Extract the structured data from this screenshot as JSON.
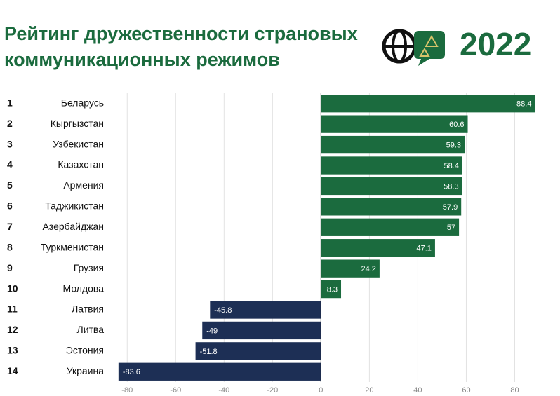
{
  "chart_data": {
    "type": "barh",
    "title_lines": [
      "Рейтинг дружественности страновых",
      "коммуникационных режимов"
    ],
    "year": "2022",
    "ranks": [
      1,
      2,
      3,
      4,
      5,
      6,
      7,
      8,
      9,
      10,
      11,
      12,
      13,
      14
    ],
    "categories": [
      "Беларусь",
      "Кыргызстан",
      "Узбекистан",
      "Казахстан",
      "Армения",
      "Таджикистан",
      "Азербайджан",
      "Туркменистан",
      "Грузия",
      "Молдова",
      "Латвия",
      "Литва",
      "Эстония",
      "Украина"
    ],
    "values": [
      88.4,
      60.6,
      59.3,
      58.4,
      58.3,
      57.9,
      57,
      47.1,
      24.2,
      8.3,
      -45.8,
      -49,
      -51.8,
      -83.6
    ],
    "positive_color": "#1b6b3e",
    "negative_color": "#1d2f55",
    "xlim": [
      -85,
      90
    ],
    "xticks": [
      -80,
      -60,
      -40,
      -20,
      0,
      20,
      40,
      60,
      80
    ],
    "grid": true
  }
}
